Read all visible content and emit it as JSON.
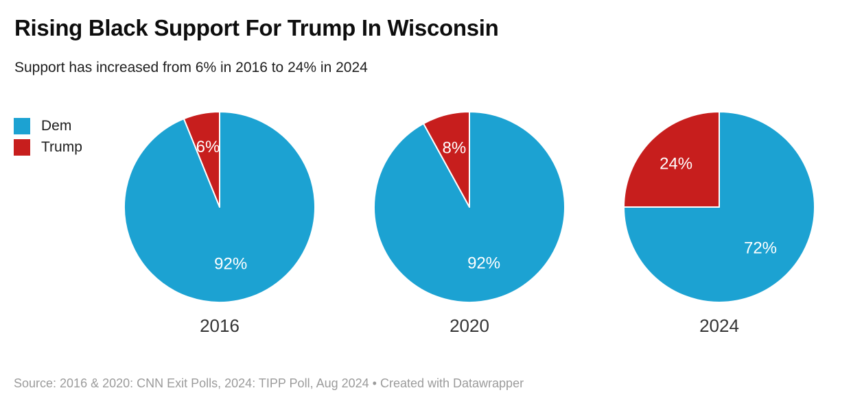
{
  "header": {
    "title": "Rising Black Support For Trump In Wisconsin",
    "subtitle": "Support has increased from 6% in 2016 to 24% in 2024"
  },
  "legend": {
    "items": [
      {
        "label": "Dem",
        "color": "#1CA2D2"
      },
      {
        "label": "Trump",
        "color": "#C71E1D"
      }
    ]
  },
  "chart_data": {
    "type": "pie",
    "title": "Rising Black Support For Trump In Wisconsin",
    "subtitle": "Support has increased from 6% in 2016 to 24% in 2024",
    "series_labels": [
      "Dem",
      "Trump"
    ],
    "colors": {
      "Dem": "#1CA2D2",
      "Trump": "#C71E1D"
    },
    "slice_label_color": "#ffffff",
    "slice_divider_color": "#ffffff",
    "start_angle_deg": 0,
    "direction": "clockwise",
    "label_format": "percent",
    "legend_position": "left",
    "pies": [
      {
        "year": "2016",
        "values": {
          "Dem": 92,
          "Trump": 6
        },
        "labels": {
          "Dem": "92%",
          "Trump": "6%"
        }
      },
      {
        "year": "2020",
        "values": {
          "Dem": 92,
          "Trump": 8
        },
        "labels": {
          "Dem": "92%",
          "Trump": "8%"
        }
      },
      {
        "year": "2024",
        "values": {
          "Dem": 72,
          "Trump": 24
        },
        "labels": {
          "Dem": "72%",
          "Trump": "24%"
        }
      }
    ]
  },
  "footer": {
    "source": "Source: 2016 & 2020: CNN Exit Polls, 2024: TIPP Poll, Aug 2024",
    "separator": "•",
    "attribution": "Created with Datawrapper"
  }
}
